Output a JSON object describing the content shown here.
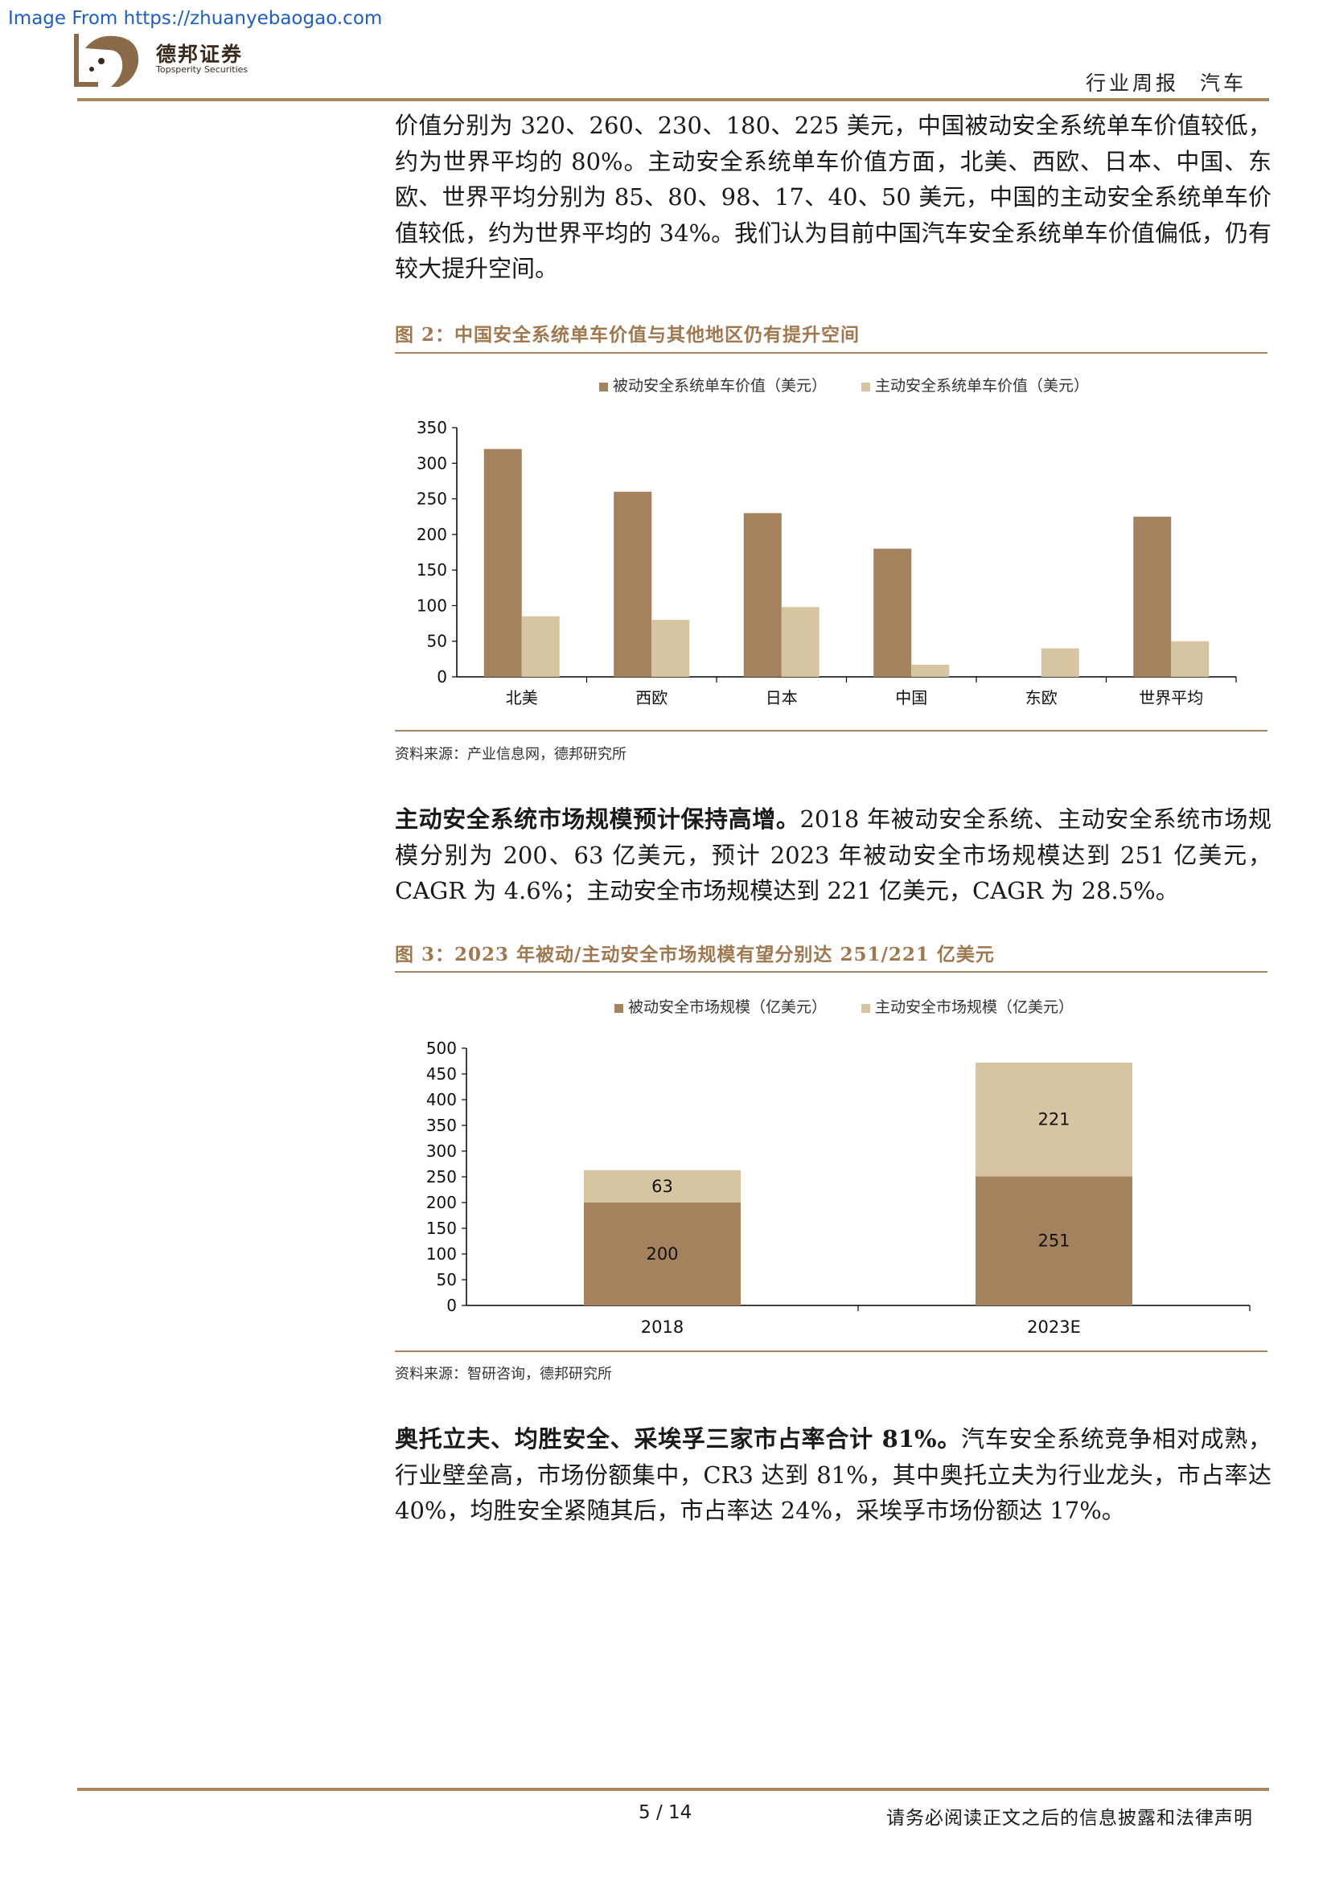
{
  "watermark": "Image From https://zhuanyebaogao.com",
  "logo": {
    "name": "德邦证券",
    "sub": "Topsperity Securities"
  },
  "header": {
    "tag": "行业周报 汽车"
  },
  "para1": "价值分别为 320、260、230、180、225 美元，中国被动安全系统单车价值较低，约为世界平均的 80%。主动安全系统单车价值方面，北美、西欧、日本、中国、东欧、世界平均分别为 85、80、98、17、40、50 美元，中国的主动安全系统单车价值较低，约为世界平均的 34%。我们认为目前中国汽车安全系统单车价值偏低，仍有较大提升空间。",
  "fig2": {
    "title": "图 2：中国安全系统单车价值与其他地区仍有提升空间",
    "source": "资料来源：产业信息网，德邦研究所"
  },
  "para2": {
    "lead": "主动安全系统市场规模预计保持高增。",
    "body": "2018 年被动安全系统、主动安全系统市场规模分别为 200、63 亿美元，预计 2023 年被动安全市场规模达到 251 亿美元，CAGR 为 4.6%；主动安全市场规模达到 221 亿美元，CAGR 为 28.5%。"
  },
  "fig3": {
    "title": "图 3：2023 年被动/主动安全市场规模有望分别达 251/221 亿美元",
    "source": "资料来源：智研咨询，德邦研究所"
  },
  "para3": {
    "lead": "奥托立夫、均胜安全、采埃孚三家市占率合计 81%。",
    "body": "汽车安全系统竞争相对成熟，行业壁垒高，市场份额集中，CR3 达到 81%，其中奥托立夫为行业龙头，市占率达 40%，均胜安全紧随其后，市占率达 24%，采埃孚市场份额达 17%。"
  },
  "footer": {
    "page": "5 / 14",
    "note": "请务必阅读正文之后的信息披露和法律声明"
  },
  "colors": {
    "dark": "#a4825d",
    "light": "#d7c5a2",
    "accent": "#a88660"
  },
  "chart_data": [
    {
      "type": "bar",
      "categories": [
        "北美",
        "西欧",
        "日本",
        "中国",
        "东欧",
        "世界平均"
      ],
      "series": [
        {
          "name": "被动安全系统单车价值（美元）",
          "values": [
            320,
            260,
            230,
            180,
            null,
            225
          ]
        },
        {
          "name": "主动安全系统单车价值（美元）",
          "values": [
            85,
            80,
            98,
            17,
            40,
            50
          ]
        }
      ],
      "yticks": [
        "0",
        "50",
        "100",
        "150",
        "200",
        "250",
        "300",
        "350"
      ],
      "ylim": [
        0,
        350
      ],
      "legend": "top-center",
      "grid": false
    },
    {
      "type": "bar",
      "stacked": true,
      "categories": [
        "2018",
        "2023E"
      ],
      "series": [
        {
          "name": "被动安全市场规模（亿美元）",
          "values": [
            200,
            251
          ],
          "labels": [
            "200",
            "251"
          ]
        },
        {
          "name": "主动安全市场规模（亿美元）",
          "values": [
            63,
            221
          ],
          "labels": [
            "63",
            "221"
          ]
        }
      ],
      "yticks": [
        "0",
        "50",
        "100",
        "150",
        "200",
        "250",
        "300",
        "350",
        "400",
        "450",
        "500"
      ],
      "ylim": [
        0,
        500
      ],
      "legend": "top-center",
      "grid": false
    }
  ]
}
